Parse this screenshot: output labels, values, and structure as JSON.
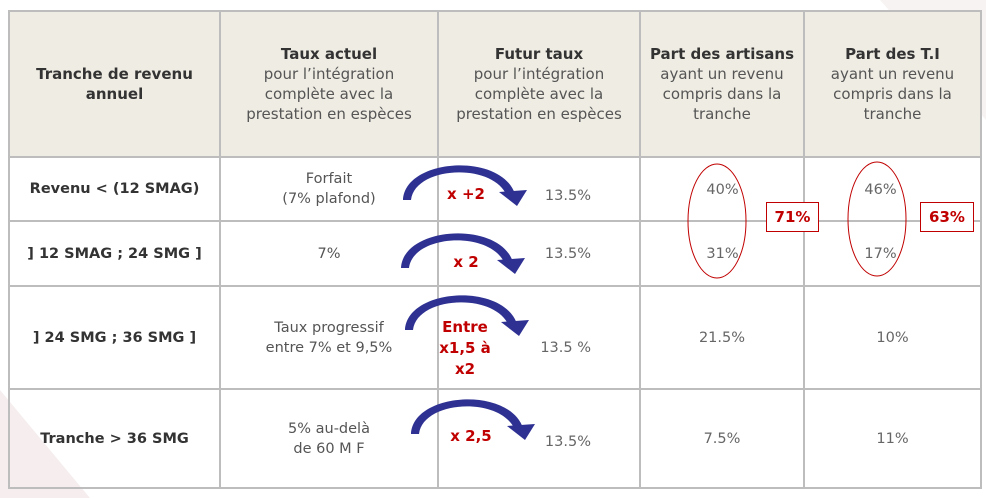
{
  "headers": [
    {
      "bold": "Tranche de revenu annuel",
      "rest": ""
    },
    {
      "bold": "Taux actuel",
      "rest": "pour l’intégration complète avec la prestation en espèces"
    },
    {
      "bold": "Futur taux",
      "rest": "pour l’intégration complète avec la prestation en espèces"
    },
    {
      "bold": "Part des artisans",
      "rest": "ayant un revenu compris dans la tranche"
    },
    {
      "bold": "Part des T.I",
      "rest": "ayant un revenu compris dans la tranche"
    }
  ],
  "rows": [
    {
      "tranche": "Revenu < (12 SMAG)",
      "actuel": "Forfait\n(7% plafond)",
      "multiplier": "x +2",
      "futur": "13.5%",
      "artisans": "40%",
      "ti": "46%"
    },
    {
      "tranche": "] 12 SMAG ; 24 SMG ]",
      "actuel": "7%",
      "multiplier": "x 2",
      "futur": "13.5%",
      "artisans": "31%",
      "ti": "17%"
    },
    {
      "tranche": "] 24 SMG ; 36 SMG ]",
      "actuel": "Taux progressif\nentre 7% et 9,5%",
      "multiplier": "Entre\nx1,5 à\nx2",
      "futur": "13.5 %",
      "artisans": "21.5%",
      "ti": "10%"
    },
    {
      "tranche": "Tranche > 36 SMG",
      "actuel": "5% au-delà\nde 60 M F",
      "multiplier": "x 2,5",
      "futur": "13.5%",
      "artisans": "7.5%",
      "ti": "11%"
    }
  ],
  "totals": {
    "artisans": "71%",
    "ti": "63%"
  },
  "colors": {
    "accent": "#c00000",
    "arrow": "#2e3192",
    "header_bg": "#efece3"
  }
}
